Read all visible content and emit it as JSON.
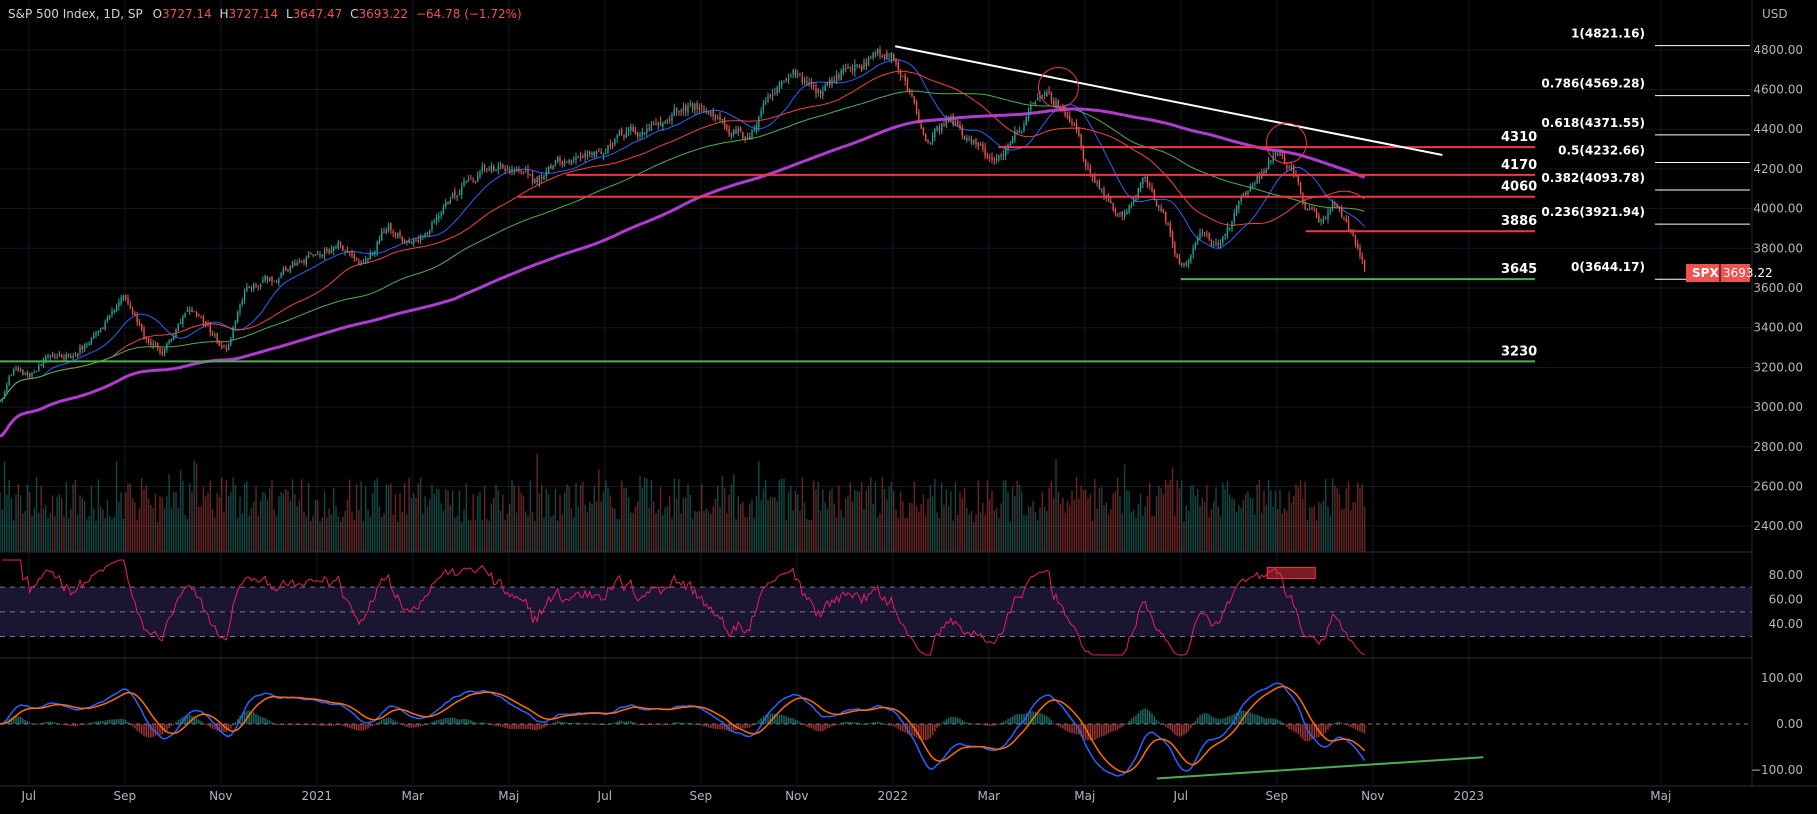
{
  "header": {
    "title": "S&P 500 Index, 1D, SP",
    "o_label": "O",
    "o_value": "3727.14",
    "h_label": "H",
    "h_value": "3727.14",
    "l_label": "L",
    "l_value": "3647.47",
    "c_label": "C",
    "c_value": "3693.22",
    "change": "−64.78 (−1.72%)"
  },
  "currency": "USD",
  "price_badge": {
    "symbol": "SPX",
    "value": "3693.22"
  },
  "colors": {
    "background": "#000000",
    "up": "#26a69a",
    "down": "#ef5350",
    "ma20": "#2962ff",
    "ma50": "#f44336",
    "ma100": "#4caf50",
    "ma200": "#b03bd0",
    "rsi": "#e91e63",
    "macd": "#2962ff",
    "signal": "#ff6d00",
    "trendline": "#ffffff",
    "support": "#4caf50",
    "resistance": "#f23645"
  },
  "chart_data": [
    {
      "type": "candlestick",
      "panel": "price",
      "ylim": [
        2300,
        4900
      ],
      "y_ticks": [
        "4800.00",
        "4600.00",
        "4400.00",
        "4200.00",
        "4000.00",
        "3800.00",
        "3600.00",
        "3400.00",
        "3200.00",
        "3000.00",
        "2800.00",
        "2600.00",
        "2400.00"
      ],
      "y_tick_values": [
        4800,
        4600,
        4400,
        4200,
        4000,
        3800,
        3600,
        3400,
        3200,
        3000,
        2800,
        2600,
        2400
      ],
      "x_ticks": [
        "Jul",
        "Sep",
        "Nov",
        "2021",
        "Mar",
        "Maj",
        "Jul",
        "Sep",
        "Nov",
        "2022",
        "Mar",
        "Maj",
        "Jul",
        "Sep",
        "Nov",
        "2023",
        "Maj"
      ],
      "x_tick_months": [
        0,
        2,
        4,
        6,
        8,
        10,
        12,
        14,
        16,
        18,
        20,
        22,
        24,
        26,
        28,
        30,
        34
      ],
      "x_range_months": [
        -0.6,
        35.9
      ],
      "close_anchors": [
        {
          "m": -0.6,
          "v": 3050
        },
        {
          "m": -0.3,
          "v": 3200
        },
        {
          "m": 0.0,
          "v": 3150
        },
        {
          "m": 0.5,
          "v": 3250
        },
        {
          "m": 1.0,
          "v": 3280
        },
        {
          "m": 1.5,
          "v": 3380
        },
        {
          "m": 2.0,
          "v": 3560
        },
        {
          "m": 2.4,
          "v": 3340
        },
        {
          "m": 2.8,
          "v": 3280
        },
        {
          "m": 3.3,
          "v": 3470
        },
        {
          "m": 3.7,
          "v": 3410
        },
        {
          "m": 4.1,
          "v": 3280
        },
        {
          "m": 4.5,
          "v": 3580
        },
        {
          "m": 5.0,
          "v": 3640
        },
        {
          "m": 5.5,
          "v": 3700
        },
        {
          "m": 6.0,
          "v": 3760
        },
        {
          "m": 6.5,
          "v": 3820
        },
        {
          "m": 6.9,
          "v": 3720
        },
        {
          "m": 7.5,
          "v": 3930
        },
        {
          "m": 8.0,
          "v": 3830
        },
        {
          "m": 8.5,
          "v": 3970
        },
        {
          "m": 9.0,
          "v": 4100
        },
        {
          "m": 9.5,
          "v": 4200
        },
        {
          "m": 10.0,
          "v": 4190
        },
        {
          "m": 10.5,
          "v": 4130
        },
        {
          "m": 11.0,
          "v": 4230
        },
        {
          "m": 11.5,
          "v": 4260
        },
        {
          "m": 12.0,
          "v": 4320
        },
        {
          "m": 12.5,
          "v": 4380
        },
        {
          "m": 13.0,
          "v": 4420
        },
        {
          "m": 13.5,
          "v": 4500
        },
        {
          "m": 14.0,
          "v": 4520
        },
        {
          "m": 14.5,
          "v": 4400
        },
        {
          "m": 15.0,
          "v": 4360
        },
        {
          "m": 15.5,
          "v": 4560
        },
        {
          "m": 16.0,
          "v": 4680
        },
        {
          "m": 16.5,
          "v": 4600
        },
        {
          "m": 17.0,
          "v": 4700
        },
        {
          "m": 17.6,
          "v": 4760
        },
        {
          "m": 18.0,
          "v": 4780
        },
        {
          "m": 18.3,
          "v": 4600
        },
        {
          "m": 18.7,
          "v": 4350
        },
        {
          "m": 19.2,
          "v": 4450
        },
        {
          "m": 19.6,
          "v": 4350
        },
        {
          "m": 20.0,
          "v": 4250
        },
        {
          "m": 20.4,
          "v": 4300
        },
        {
          "m": 20.8,
          "v": 4460
        },
        {
          "m": 21.2,
          "v": 4580
        },
        {
          "m": 21.6,
          "v": 4500
        },
        {
          "m": 22.0,
          "v": 4250
        },
        {
          "m": 22.4,
          "v": 4050
        },
        {
          "m": 22.8,
          "v": 3950
        },
        {
          "m": 23.2,
          "v": 4150
        },
        {
          "m": 23.6,
          "v": 4000
        },
        {
          "m": 24.0,
          "v": 3700
        },
        {
          "m": 24.4,
          "v": 3850
        },
        {
          "m": 24.8,
          "v": 3800
        },
        {
          "m": 25.2,
          "v": 4000
        },
        {
          "m": 25.6,
          "v": 4130
        },
        {
          "m": 26.0,
          "v": 4280
        },
        {
          "m": 26.3,
          "v": 4200
        },
        {
          "m": 26.6,
          "v": 4000
        },
        {
          "m": 26.9,
          "v": 3900
        },
        {
          "m": 27.2,
          "v": 4050
        },
        {
          "m": 27.5,
          "v": 3890
        },
        {
          "m": 27.7,
          "v": 3780
        },
        {
          "m": 27.85,
          "v": 3693
        }
      ],
      "moving_averages": [
        {
          "period": 20,
          "color_key": "ma20"
        },
        {
          "period": 50,
          "color_key": "ma50"
        },
        {
          "period": 100,
          "color_key": "ma100"
        },
        {
          "period": 200,
          "color_key": "ma200"
        }
      ],
      "horizontal_levels": [
        {
          "label": "4310",
          "value": 4310,
          "from_month": 20.2,
          "kind": "resistance"
        },
        {
          "label": "4170",
          "value": 4170,
          "from_month": 11.2,
          "kind": "resistance"
        },
        {
          "label": "4060",
          "value": 4060,
          "from_month": 10.2,
          "kind": "resistance"
        },
        {
          "label": "3886",
          "value": 3886,
          "from_month": 26.6,
          "kind": "resistance"
        },
        {
          "label": "3645",
          "value": 3645,
          "from_month": 24.0,
          "kind": "support"
        },
        {
          "label": "3230",
          "value": 3230,
          "from_month": -0.6,
          "kind": "support"
        }
      ],
      "trendline": {
        "from": {
          "m": 18.05,
          "v": 4818
        },
        "to": {
          "m": 29.45,
          "v": 4270
        }
      },
      "circles": [
        {
          "m": 21.45,
          "v": 4610
        },
        {
          "m": 26.2,
          "v": 4330
        }
      ],
      "fibonacci": [
        {
          "label": "1(4821.16)",
          "value": 4821.16
        },
        {
          "label": "0.786(4569.28)",
          "value": 4569.28
        },
        {
          "label": "0.618(4371.55)",
          "value": 4371.55
        },
        {
          "label": "0.5(4232.66)",
          "value": 4232.66
        },
        {
          "label": "0.382(4093.78)",
          "value": 4093.78
        },
        {
          "label": "0.236(3921.94)",
          "value": 3921.94
        },
        {
          "label": "0(3644.17)",
          "value": 3644.17
        }
      ]
    },
    {
      "type": "bar",
      "panel": "volume",
      "note_units": "relative"
    },
    {
      "type": "line",
      "panel": "rsi",
      "ylim": [
        15,
        92
      ],
      "y_ticks": [
        "80.00",
        "60.00",
        "40.00"
      ],
      "y_tick_values": [
        80,
        60,
        40
      ],
      "bands": [
        70,
        50,
        30
      ],
      "overbought_box": {
        "from_month": 25.8,
        "to_month": 26.8
      }
    },
    {
      "type": "line",
      "panel": "macd",
      "ylim": [
        -130,
        130
      ],
      "y_ticks": [
        "100.00",
        "0.00",
        "−100.00"
      ],
      "y_tick_values": [
        100,
        0,
        -100
      ],
      "divergence_line": {
        "from": {
          "m": 23.5,
          "v": -118
        },
        "to": {
          "m": 30.3,
          "v": -72
        }
      }
    }
  ]
}
